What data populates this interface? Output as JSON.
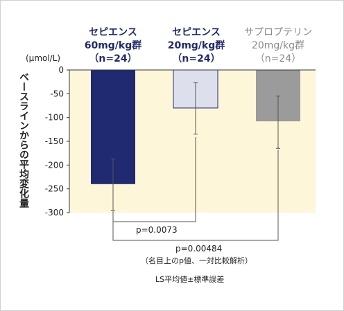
{
  "chart_data": {
    "type": "bar",
    "unit_label": "(μmol/L)",
    "ylabel": "ベースラインからの平均変化量",
    "ylim": [
      -300,
      0
    ],
    "yticks": [
      0,
      -50,
      -100,
      -150,
      -200,
      -250,
      -300
    ],
    "categories": [
      {
        "line1": "セピエンス",
        "line2": "60mg/kg群",
        "line3": "（n=24）",
        "color": "#1f2a70",
        "header_color": "#1f2a70"
      },
      {
        "line1": "セピエンス",
        "line2": "20mg/kg群",
        "line3": "（n=24）",
        "color": "#dde0ec",
        "header_color": "#1f2a70"
      },
      {
        "line1": "サプロプテリン",
        "line2": "20mg/kg群",
        "line3": "（n=24）",
        "color": "#9b9b9b",
        "header_color": "#8a8a8a"
      }
    ],
    "values": [
      -240,
      -80,
      -108
    ],
    "error_low": [
      -295,
      -135,
      -165
    ],
    "error_high": [
      -187,
      -27,
      -55
    ],
    "background_color": "#fdf6d8",
    "comparisons": [
      {
        "groups": [
          0,
          1
        ],
        "label": "p=0.0073"
      },
      {
        "groups": [
          0,
          2
        ],
        "label": "p=0.00484"
      }
    ],
    "comparison_note": "（名目上のp値、一対比較解析）",
    "footnote": "LS平均値±標準誤差"
  }
}
